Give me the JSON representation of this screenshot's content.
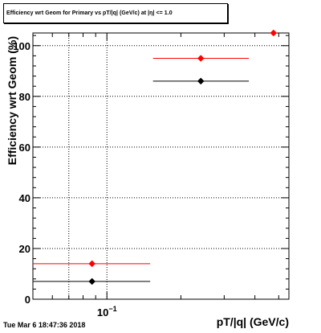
{
  "chart_data": {
    "type": "scatter",
    "title": "Efficiency wrt Geom for Primary vs pT/|q| (GeV/c) at |η| <= 1.0",
    "xlabel": "pT/|q| (GeV/c)",
    "ylabel": "Efficiency wrt Geom (%)",
    "xscale": "log",
    "xlim": [
      0.05,
      0.55
    ],
    "ylim": [
      0,
      105
    ],
    "grid": true,
    "x_tick_label": "10",
    "x_tick_label_exp": "−1",
    "y_tick_labels": [
      "0",
      "20",
      "40",
      "60",
      "80",
      "100"
    ],
    "series": [
      {
        "color": "#000000",
        "points": [
          {
            "x": 0.087,
            "y": 7,
            "xlo": 0.05,
            "xhi": 0.15
          },
          {
            "x": 0.241,
            "y": 86,
            "xlo": 0.154,
            "xhi": 0.378
          }
        ]
      },
      {
        "color": "#ff0000",
        "points": [
          {
            "x": 0.087,
            "y": 14,
            "xlo": 0.05,
            "xhi": 0.15
          },
          {
            "x": 0.241,
            "y": 95,
            "xlo": 0.154,
            "xhi": 0.378
          },
          {
            "x": 0.476,
            "y": 105,
            "xlo": 0.476,
            "xhi": 0.476
          }
        ]
      }
    ]
  },
  "timestamp": "Tue Mar  6 18:47:36 2018"
}
